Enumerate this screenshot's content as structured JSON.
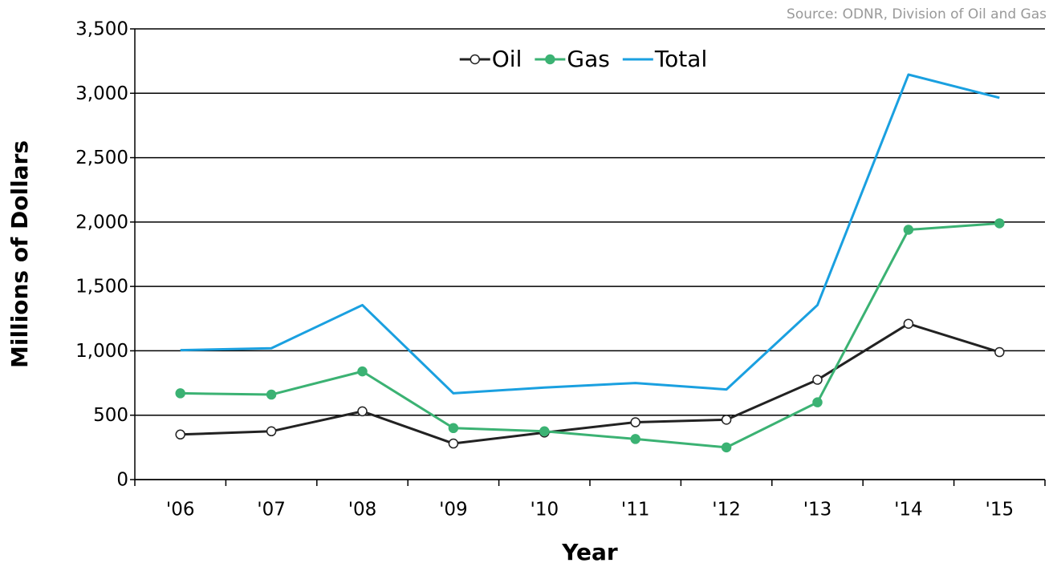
{
  "chart_data": {
    "type": "line",
    "source": "Source: ODNR, Division of Oil and Gas",
    "x_label": "Year",
    "y_label": "Millions of Dollars",
    "categories": [
      "'06",
      "'07",
      "'08",
      "'09",
      "'10",
      "'11",
      "'12",
      "'13",
      "'14",
      "'15"
    ],
    "series": [
      {
        "name": "Oil",
        "color": "#222222",
        "marker": "open-circle",
        "values": [
          350,
          375,
          530,
          280,
          365,
          445,
          465,
          775,
          1210,
          990
        ]
      },
      {
        "name": "Gas",
        "color": "#3bb273",
        "marker": "filled-circle",
        "values": [
          670,
          660,
          840,
          400,
          375,
          315,
          250,
          600,
          1940,
          1990
        ]
      },
      {
        "name": "Total",
        "color": "#1aa0e0",
        "marker": "none",
        "values": [
          1005,
          1020,
          1355,
          670,
          715,
          750,
          700,
          1355,
          3145,
          2965
        ]
      }
    ],
    "ylim": [
      0,
      3500
    ],
    "yticks": [
      0,
      500,
      {
        "value": 1000,
        "label": "1,000"
      },
      {
        "value": 1500,
        "label": "1,500"
      },
      {
        "value": 2000,
        "label": "2,000"
      },
      {
        "value": 2500,
        "label": "2,500"
      },
      {
        "value": 3000,
        "label": "3,000"
      },
      {
        "value": 3500,
        "label": "3,500"
      }
    ],
    "grid": true,
    "legend": "top"
  }
}
